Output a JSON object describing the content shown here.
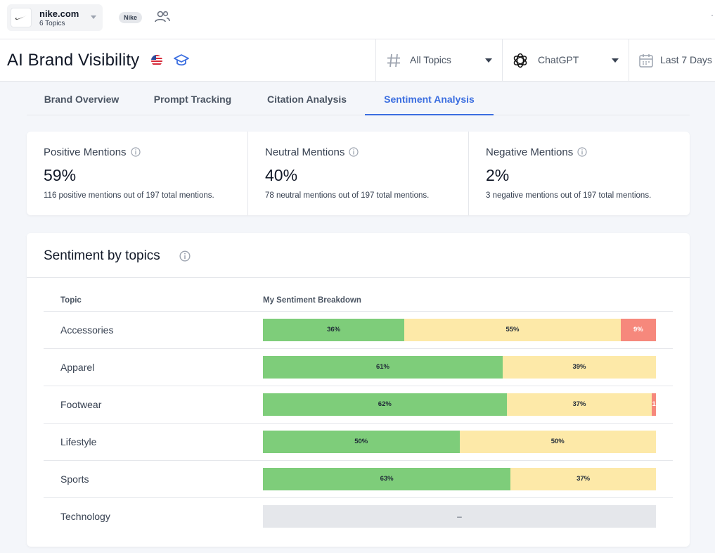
{
  "topbar": {
    "brand_name": "nike.com",
    "brand_sub": "6 Topics",
    "tag": "Nike"
  },
  "header": {
    "title": "AI Brand Visibility",
    "filters": {
      "topics": "All Topics",
      "model": "ChatGPT",
      "date": "Last 7 Days"
    }
  },
  "tabs": [
    {
      "label": "Brand Overview",
      "active": false
    },
    {
      "label": "Prompt Tracking",
      "active": false
    },
    {
      "label": "Citation Analysis",
      "active": false
    },
    {
      "label": "Sentiment Analysis",
      "active": true
    }
  ],
  "metrics": [
    {
      "label": "Positive Mentions",
      "value": "59%",
      "desc": "116 positive mentions out of 197 total mentions."
    },
    {
      "label": "Neutral Mentions",
      "value": "40%",
      "desc": "78 neutral mentions out of 197 total mentions."
    },
    {
      "label": "Negative Mentions",
      "value": "2%",
      "desc": "3 negative mentions out of 197 total mentions."
    }
  ],
  "sentiment": {
    "title": "Sentiment by topics",
    "columns": {
      "topic": "Topic",
      "breakdown": "My Sentiment Breakdown"
    },
    "rows": [
      {
        "topic": "Accessories",
        "positive": 36,
        "neutral": 55,
        "negative": 9,
        "labels": [
          "36%",
          "55%",
          "9%"
        ]
      },
      {
        "topic": "Apparel",
        "positive": 61,
        "neutral": 39,
        "negative": 0,
        "labels": [
          "61%",
          "39%",
          ""
        ]
      },
      {
        "topic": "Footwear",
        "positive": 62,
        "neutral": 37,
        "negative": 1,
        "labels": [
          "62%",
          "37%",
          "1"
        ]
      },
      {
        "topic": "Lifestyle",
        "positive": 50,
        "neutral": 50,
        "negative": 0,
        "labels": [
          "50%",
          "50%",
          ""
        ]
      },
      {
        "topic": "Sports",
        "positive": 63,
        "neutral": 37,
        "negative": 0,
        "labels": [
          "63%",
          "37%",
          ""
        ]
      },
      {
        "topic": "Technology",
        "positive": null,
        "neutral": null,
        "negative": null,
        "empty_label": "–"
      }
    ]
  },
  "colors": {
    "positive": "#7ecd7a",
    "neutral": "#fde9a8",
    "negative": "#f6887c",
    "accent": "#3b6ee0"
  }
}
